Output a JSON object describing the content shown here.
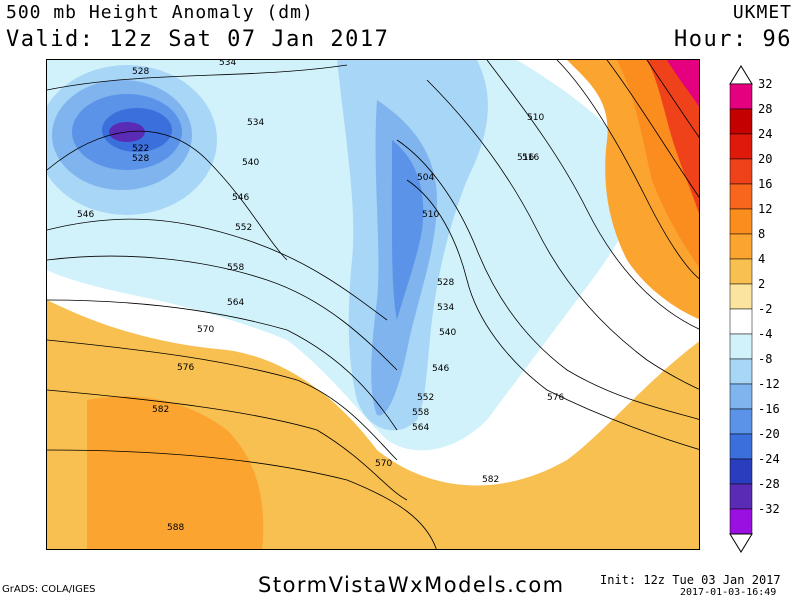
{
  "header": {
    "title": "500 mb Height Anomaly (dm)",
    "valid": "Valid: 12z Sat 07 Jan 2017",
    "model": "UKMET",
    "hour": "Hour: 96"
  },
  "colorbar": {
    "levels": [
      {
        "label": "32",
        "color": "#e4007e"
      },
      {
        "label": "28",
        "color": "#c40000"
      },
      {
        "label": "24",
        "color": "#e01a0a"
      },
      {
        "label": "20",
        "color": "#f0421a"
      },
      {
        "label": "16",
        "color": "#f8661e"
      },
      {
        "label": "12",
        "color": "#fb8c1e"
      },
      {
        "label": "8",
        "color": "#fba530"
      },
      {
        "label": "4",
        "color": "#f7c050"
      },
      {
        "label": "2",
        "color": "#fbe4a0"
      },
      {
        "label": "-2",
        "color": "#ffffff"
      },
      {
        "label": "-4",
        "color": "#d2f2fb"
      },
      {
        "label": "-8",
        "color": "#a8d6f6"
      },
      {
        "label": "-12",
        "color": "#7fb4ef"
      },
      {
        "label": "-16",
        "color": "#5b93e8"
      },
      {
        "label": "-20",
        "color": "#3a6fdc"
      },
      {
        "label": "-24",
        "color": "#2a3dbe"
      },
      {
        "label": "-28",
        "color": "#5a2bb4"
      },
      {
        "label": "-32",
        "color": "#9a10e0"
      }
    ]
  },
  "map": {
    "contour_labels": [
      "528",
      "534",
      "522",
      "528",
      "534",
      "540",
      "546",
      "546",
      "552",
      "558",
      "564",
      "570",
      "576",
      "582",
      "588",
      "504",
      "510",
      "516",
      "510",
      "516",
      "528",
      "534",
      "540",
      "546",
      "552",
      "558",
      "564",
      "570",
      "576",
      "582"
    ]
  },
  "footer": {
    "credit": "GrADS: COLA/IGES",
    "site": "StormVistaWxModels.com",
    "init": "Init: 12z Tue 03 Jan 2017",
    "timestamp": "2017-01-03-16:49"
  }
}
